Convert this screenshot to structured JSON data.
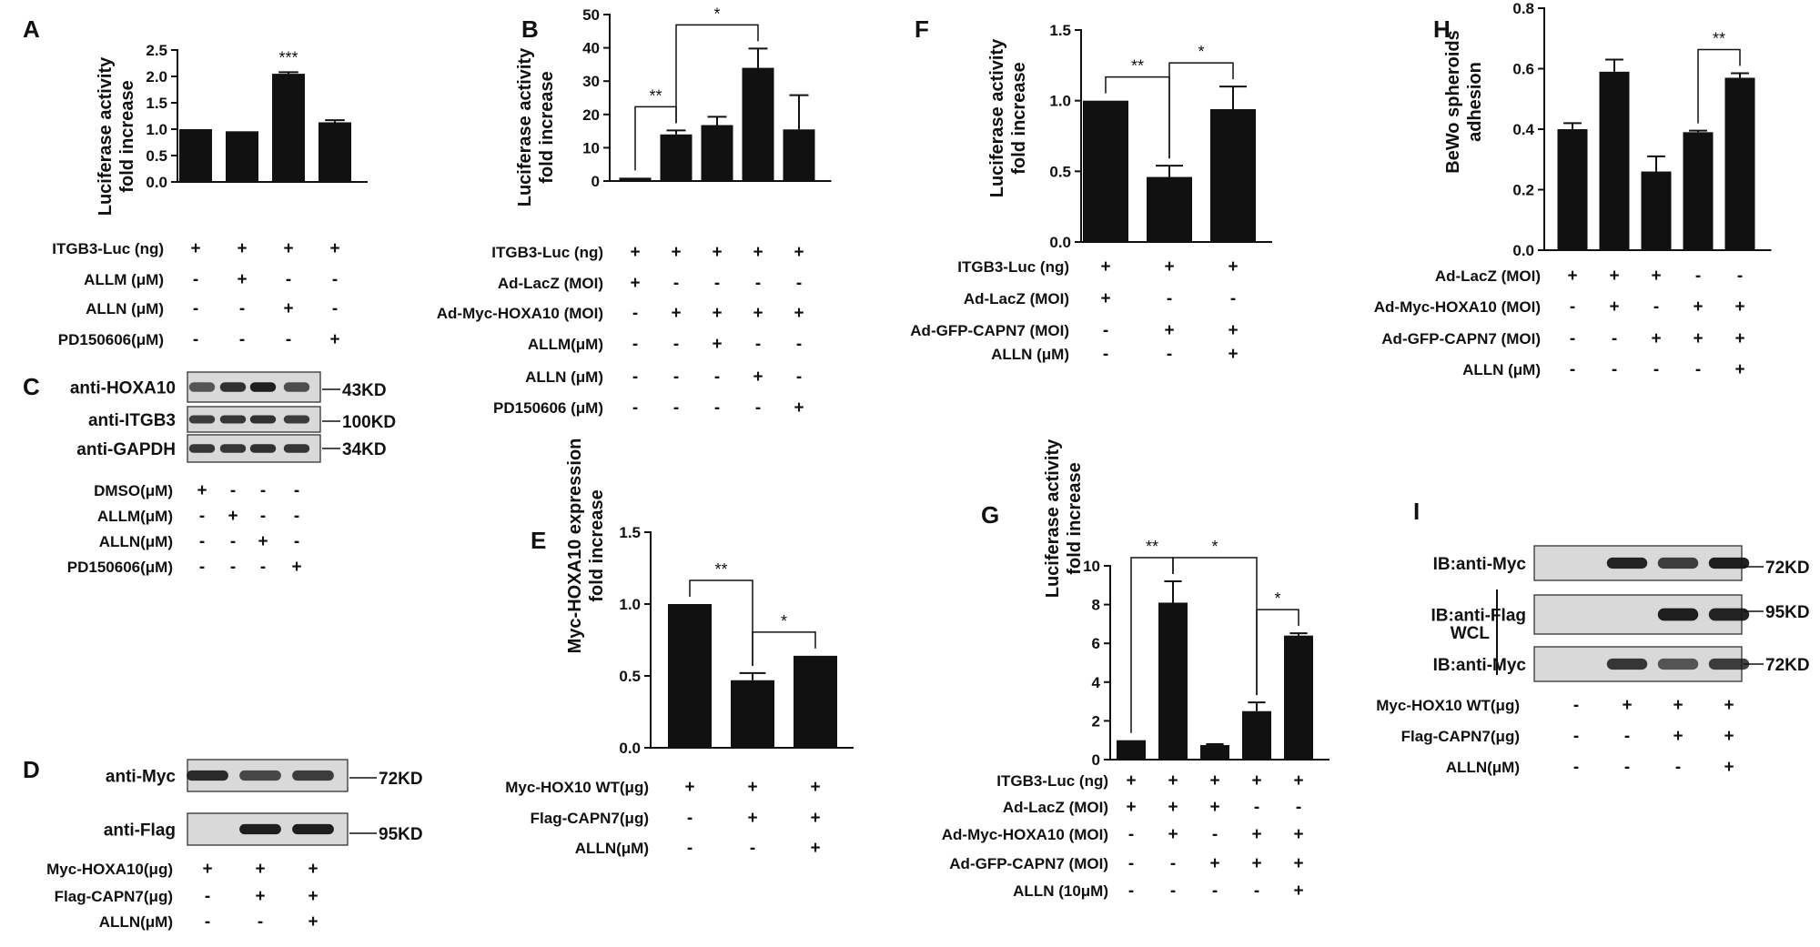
{
  "figure": {
    "panels": {
      "A": {
        "letter": "A",
        "ylabel": [
          "Luciferase activity",
          "fold increase"
        ]
      },
      "B": {
        "letter": "B",
        "ylabel": [
          "Luciferase activity",
          "fold increase"
        ]
      },
      "C": {
        "letter": "C"
      },
      "D": {
        "letter": "D"
      },
      "E": {
        "letter": "E",
        "ylabel": [
          "Myc-HOXA10 expression",
          "fold increase"
        ]
      },
      "F": {
        "letter": "F",
        "ylabel": [
          "Luciferase activity",
          "fold increase"
        ]
      },
      "G": {
        "letter": "G",
        "ylabel": [
          "Luciferase activity",
          "fold increase"
        ]
      },
      "H": {
        "letter": "H",
        "ylabel": [
          "BeWo spheroids",
          "adhesion"
        ]
      },
      "I": {
        "letter": "I"
      }
    }
  },
  "chart_data": [
    {
      "panel": "A",
      "type": "bar",
      "values": [
        1.0,
        0.96,
        2.05,
        1.13
      ],
      "errors": [
        0.0,
        0.0,
        0.03,
        0.04
      ],
      "ylim": [
        0,
        2.5
      ],
      "yticks": [
        "0.0",
        "0.5",
        "1.0",
        "1.5",
        "2.0",
        "2.5"
      ],
      "stars": [
        {
          "bar": 2,
          "text": "***"
        }
      ],
      "conditions": [
        {
          "label": "ITGB3-Luc (ng)",
          "marks": [
            "+",
            "+",
            "+",
            "+"
          ]
        },
        {
          "label": "ALLM (μM)",
          "marks": [
            "-",
            "+",
            "-",
            "-"
          ]
        },
        {
          "label": "ALLN (μM)",
          "marks": [
            "-",
            "-",
            "+",
            "-"
          ]
        },
        {
          "label": "PD150606(μM)",
          "marks": [
            "-",
            "-",
            "-",
            "+"
          ]
        }
      ]
    },
    {
      "panel": "B",
      "type": "bar",
      "values": [
        1.0,
        14.0,
        16.8,
        34.0,
        15.5
      ],
      "errors": [
        0.0,
        1.2,
        2.5,
        5.8,
        10.3
      ],
      "ylim": [
        0,
        50
      ],
      "yticks": [
        "0",
        "10",
        "20",
        "30",
        "40",
        "50"
      ],
      "brackets": [
        {
          "from": 0,
          "to": 1,
          "text": "**"
        },
        {
          "from": 1,
          "to": 3,
          "text": "*"
        }
      ],
      "conditions": [
        {
          "label": "ITGB3-Luc (ng)",
          "marks": [
            "+",
            "+",
            "+",
            "+",
            "+"
          ]
        },
        {
          "label": "Ad-LacZ (MOI)",
          "marks": [
            "+",
            "-",
            "-",
            "-",
            "-"
          ]
        },
        {
          "label": "Ad-Myc-HOXA10 (MOI)",
          "marks": [
            "-",
            "+",
            "+",
            "+",
            "+"
          ]
        },
        {
          "label": "ALLM(μM)",
          "marks": [
            "-",
            "-",
            "+",
            "-",
            "-"
          ]
        },
        {
          "label": "ALLN (μM)",
          "marks": [
            "-",
            "-",
            "-",
            "+",
            "-"
          ]
        },
        {
          "label": "PD150606 (μM)",
          "marks": [
            "-",
            "-",
            "-",
            "-",
            "+"
          ]
        }
      ]
    },
    {
      "panel": "E",
      "type": "bar",
      "values": [
        1.0,
        0.47,
        0.64
      ],
      "errors": [
        0.0,
        0.05,
        0.0
      ],
      "ylim": [
        0,
        1.5
      ],
      "yticks": [
        "0.0",
        "0.5",
        "1.0",
        "1.5"
      ],
      "brackets": [
        {
          "from": 0,
          "to": 1,
          "text": "**"
        },
        {
          "from": 1,
          "to": 2,
          "text": "*"
        }
      ],
      "conditions": [
        {
          "label": "Myc-HOX10 WT(μg)",
          "marks": [
            "+",
            "+",
            "+"
          ]
        },
        {
          "label": "Flag-CAPN7(μg)",
          "marks": [
            "-",
            "+",
            "+"
          ]
        },
        {
          "label": "ALLN(μM)",
          "marks": [
            "-",
            "-",
            "+"
          ]
        }
      ]
    },
    {
      "panel": "F",
      "type": "bar",
      "values": [
        1.0,
        0.46,
        0.94
      ],
      "errors": [
        0.0,
        0.08,
        0.16
      ],
      "ylim": [
        0,
        1.5
      ],
      "yticks": [
        "0.0",
        "0.5",
        "1.0",
        "1.5"
      ],
      "brackets": [
        {
          "from": 0,
          "to": 1,
          "text": "**"
        },
        {
          "from": 1,
          "to": 2,
          "text": "*"
        }
      ],
      "conditions": [
        {
          "label": "ITGB3-Luc (ng)",
          "marks": [
            "+",
            "+",
            "+"
          ]
        },
        {
          "label": "Ad-LacZ (MOI)",
          "marks": [
            "+",
            "-",
            "-"
          ]
        },
        {
          "label": "Ad-GFP-CAPN7 (MOI)",
          "marks": [
            "-",
            "+",
            "+"
          ]
        },
        {
          "label": "ALLN (μM)",
          "marks": [
            "-",
            "-",
            "+"
          ]
        }
      ]
    },
    {
      "panel": "G",
      "type": "bar",
      "values": [
        1.0,
        8.1,
        0.75,
        2.5,
        6.4
      ],
      "errors": [
        0.0,
        1.1,
        0.05,
        0.45,
        0.12
      ],
      "ylim": [
        0,
        10
      ],
      "yticks": [
        "0",
        "2",
        "4",
        "6",
        "8",
        "10"
      ],
      "brackets": [
        {
          "from": 0,
          "to": 1,
          "text": "**"
        },
        {
          "from": 1,
          "to": 3,
          "text": "*"
        },
        {
          "from": 3,
          "to": 4,
          "text": "*"
        }
      ],
      "conditions": [
        {
          "label": "ITGB3-Luc (ng)",
          "marks": [
            "+",
            "+",
            "+",
            "+",
            "+"
          ]
        },
        {
          "label": "Ad-LacZ (MOI)",
          "marks": [
            "+",
            "+",
            "+",
            "-",
            "-"
          ]
        },
        {
          "label": "Ad-Myc-HOXA10 (MOI)",
          "marks": [
            "-",
            "+",
            "-",
            "+",
            "+"
          ]
        },
        {
          "label": "Ad-GFP-CAPN7 (MOI)",
          "marks": [
            "-",
            "-",
            "+",
            "+",
            "+"
          ]
        },
        {
          "label": "ALLN (10μM)",
          "marks": [
            "-",
            "-",
            "-",
            "-",
            "+"
          ]
        }
      ]
    },
    {
      "panel": "H",
      "type": "bar",
      "values": [
        0.4,
        0.59,
        0.26,
        0.39,
        0.57
      ],
      "errors": [
        0.02,
        0.04,
        0.05,
        0.005,
        0.015
      ],
      "ylim": [
        0,
        0.8
      ],
      "yticks": [
        "0.0",
        "0.2",
        "0.4",
        "0.6",
        "0.8"
      ],
      "brackets": [
        {
          "from": 3,
          "to": 4,
          "text": "**"
        }
      ],
      "conditions": [
        {
          "label": "Ad-LacZ (MOI)",
          "marks": [
            "+",
            "+",
            "+",
            "-",
            "-"
          ]
        },
        {
          "label": "Ad-Myc-HOXA10 (MOI)",
          "marks": [
            "-",
            "+",
            "-",
            "+",
            "+"
          ]
        },
        {
          "label": "Ad-GFP-CAPN7 (MOI)",
          "marks": [
            "-",
            "-",
            "+",
            "+",
            "+"
          ]
        },
        {
          "label": "ALLN (μM)",
          "marks": [
            "-",
            "-",
            "-",
            "-",
            "+"
          ]
        }
      ]
    }
  ],
  "blots": {
    "C": {
      "rows": [
        {
          "label": "anti-HOXA10",
          "size": "43KD"
        },
        {
          "label": "anti-ITGB3",
          "size": "100KD"
        },
        {
          "label": "anti-GAPDH",
          "size": "34KD"
        }
      ],
      "conditions": [
        {
          "label": "DMSO(μM)",
          "marks": [
            "+",
            "-",
            "-",
            "-"
          ]
        },
        {
          "label": "ALLM(μM)",
          "marks": [
            "-",
            "+",
            "-",
            "-"
          ]
        },
        {
          "label": "ALLN(μM)",
          "marks": [
            "-",
            "-",
            "+",
            "-"
          ]
        },
        {
          "label": "PD150606(μM)",
          "marks": [
            "-",
            "-",
            "-",
            "+"
          ]
        }
      ]
    },
    "D": {
      "rows": [
        {
          "label": "anti-Myc",
          "size": "72KD"
        },
        {
          "label": "anti-Flag",
          "size": "95KD"
        }
      ],
      "conditions": [
        {
          "label": "Myc-HOXA10(μg)",
          "marks": [
            "+",
            "+",
            "+"
          ]
        },
        {
          "label": "Flag-CAPN7(μg)",
          "marks": [
            "-",
            "+",
            "+"
          ]
        },
        {
          "label": "ALLN(μM)",
          "marks": [
            "-",
            "-",
            "+"
          ]
        }
      ]
    },
    "I": {
      "rows": [
        {
          "label": "IB:anti-Myc",
          "size": "72KD"
        },
        {
          "label": "IB:anti-Flag",
          "size": "95KD"
        },
        {
          "label": "IB:anti-Myc",
          "size": "72KD"
        }
      ],
      "group_label": "WCL",
      "conditions": [
        {
          "label": "Myc-HOX10 WT(μg)",
          "marks": [
            "-",
            "+",
            "+",
            "+"
          ]
        },
        {
          "label": "Flag-CAPN7(μg)",
          "marks": [
            "-",
            "-",
            "+",
            "+"
          ]
        },
        {
          "label": "ALLN(μM)",
          "marks": [
            "-",
            "-",
            "-",
            "+"
          ]
        }
      ]
    }
  }
}
